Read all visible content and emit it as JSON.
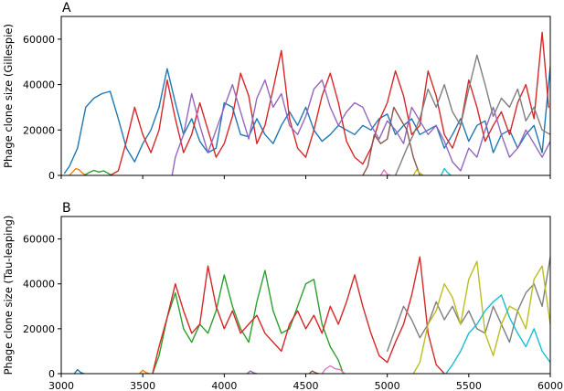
{
  "chart_data": [
    {
      "type": "line",
      "panel_label": "A",
      "xlabel": "",
      "ylabel": "Phage clone size (Gillespie)",
      "xlim": [
        3000,
        6000
      ],
      "ylim": [
        0,
        70000
      ],
      "xticks": [
        3000,
        3500,
        4000,
        4500,
        5000,
        5500,
        6000
      ],
      "yticks": [
        0,
        20000,
        40000,
        60000
      ],
      "show_xticklabels": false,
      "grid": false,
      "series": [
        {
          "color": "#1f77b4",
          "x": [
            3020,
            3050,
            3100,
            3150,
            3200,
            3250,
            3300,
            3350,
            3400,
            3450,
            3500,
            3550,
            3600,
            3650,
            3700,
            3750,
            3800,
            3850,
            3900,
            3950,
            4000,
            4050,
            4100,
            4150,
            4200,
            4250,
            4300,
            4350,
            4400,
            4450,
            4500,
            4550,
            4600,
            4650,
            4700,
            4750,
            4800,
            4850,
            4900,
            4950,
            5000,
            5050,
            5100,
            5150,
            5200,
            5250,
            5300,
            5350,
            5400,
            5450,
            5500,
            5550,
            5600,
            5650,
            5700,
            5750,
            5800,
            5850,
            5900,
            5950,
            6000
          ],
          "y": [
            1000,
            4000,
            12000,
            30000,
            34000,
            36000,
            37000,
            25000,
            12000,
            6000,
            14000,
            20000,
            30000,
            47000,
            32000,
            18000,
            25000,
            15000,
            10000,
            12000,
            32000,
            30000,
            18000,
            17000,
            25000,
            18000,
            14000,
            22000,
            28000,
            22000,
            30000,
            20000,
            15000,
            18000,
            22000,
            20000,
            18000,
            22000,
            20000,
            25000,
            27000,
            18000,
            22000,
            25000,
            18000,
            20000,
            22000,
            12000,
            18000,
            25000,
            15000,
            22000,
            24000,
            10000,
            18000,
            20000,
            12000,
            18000,
            22000,
            10000,
            48000
          ]
        },
        {
          "color": "#ff7f0e",
          "x": [
            3050,
            3070,
            3090,
            3110,
            3130,
            3150
          ],
          "y": [
            0,
            1500,
            3000,
            2500,
            1000,
            0
          ]
        },
        {
          "color": "#2ca02c",
          "x": [
            3140,
            3170,
            3200,
            3230,
            3260,
            3290,
            3310
          ],
          "y": [
            0,
            1200,
            2200,
            1500,
            2000,
            800,
            0
          ]
        },
        {
          "color": "#d62728",
          "x": [
            3300,
            3350,
            3400,
            3450,
            3500,
            3550,
            3600,
            3650,
            3700,
            3750,
            3800,
            3850,
            3900,
            3950,
            4000,
            4050,
            4100,
            4150,
            4200,
            4250,
            4300,
            4350,
            4400,
            4450,
            4500,
            4550,
            4600,
            4650,
            4700,
            4750,
            4800,
            4850,
            4900,
            4950,
            5000,
            5050,
            5100,
            5150,
            5200,
            5250,
            5300,
            5350,
            5400,
            5450,
            5500,
            5550,
            5600,
            5650,
            5700,
            5750,
            5800,
            5850,
            5900,
            5950,
            5990
          ],
          "y": [
            0,
            2000,
            15000,
            30000,
            18000,
            10000,
            20000,
            42000,
            25000,
            10000,
            18000,
            32000,
            20000,
            8000,
            14000,
            26000,
            45000,
            35000,
            14000,
            22000,
            38000,
            55000,
            25000,
            12000,
            8000,
            20000,
            35000,
            45000,
            32000,
            15000,
            8000,
            5000,
            12000,
            24000,
            32000,
            46000,
            35000,
            18000,
            22000,
            46000,
            35000,
            18000,
            12000,
            22000,
            42000,
            30000,
            15000,
            22000,
            28000,
            18000,
            32000,
            40000,
            25000,
            63000,
            30000
          ]
        },
        {
          "color": "#9467bd",
          "x": [
            3680,
            3700,
            3750,
            3800,
            3850,
            3900,
            3950,
            4000,
            4050,
            4100,
            4150,
            4200,
            4250,
            4300,
            4350,
            4400,
            4450,
            4500,
            4550,
            4600,
            4650,
            4700,
            4750,
            4800,
            4850,
            4900,
            4950,
            5000,
            5050,
            5100,
            5150,
            5200,
            5250,
            5300,
            5350,
            5400,
            5450,
            5500,
            5550,
            5600,
            5650,
            5700,
            5750,
            5800,
            5850,
            5900,
            5950,
            6000
          ],
          "y": [
            0,
            8000,
            18000,
            36000,
            22000,
            10000,
            20000,
            30000,
            40000,
            28000,
            16000,
            34000,
            42000,
            30000,
            36000,
            22000,
            18000,
            26000,
            38000,
            42000,
            30000,
            22000,
            28000,
            32000,
            30000,
            22000,
            16000,
            24000,
            20000,
            14000,
            30000,
            24000,
            18000,
            22000,
            15000,
            6000,
            2000,
            12000,
            8000,
            20000,
            30000,
            18000,
            8000,
            12000,
            20000,
            14000,
            8000,
            15000
          ]
        },
        {
          "color": "#8c564b",
          "x": [
            4850,
            4880,
            4920,
            4960,
            5000,
            5040,
            5080,
            5120,
            5160,
            5200
          ],
          "y": [
            0,
            4000,
            18000,
            14000,
            16000,
            30000,
            25000,
            20000,
            8000,
            0
          ]
        },
        {
          "color": "#e377c2",
          "x": [
            4960,
            4980,
            5000,
            5020
          ],
          "y": [
            0,
            2500,
            500,
            0
          ]
        },
        {
          "color": "#7f7f7f",
          "x": [
            5050,
            5080,
            5120,
            5160,
            5200,
            5250,
            5300,
            5350,
            5400,
            5450,
            5500,
            5550,
            5600,
            5650,
            5700,
            5750,
            5800,
            5850,
            5900,
            5950,
            6000
          ],
          "y": [
            0,
            5000,
            12000,
            18000,
            25000,
            38000,
            30000,
            40000,
            28000,
            22000,
            38000,
            53000,
            40000,
            26000,
            34000,
            30000,
            38000,
            24000,
            30000,
            20000,
            18000
          ]
        },
        {
          "color": "#bcbd22",
          "x": [
            5160,
            5180,
            5200,
            5220
          ],
          "y": [
            0,
            2500,
            1000,
            0
          ]
        },
        {
          "color": "#17becf",
          "x": [
            5330,
            5350,
            5370,
            5390
          ],
          "y": [
            0,
            3000,
            1200,
            0
          ]
        }
      ]
    },
    {
      "type": "line",
      "panel_label": "B",
      "xlabel": "",
      "ylabel": "Phage clone size (Tau-leaping)",
      "xlim": [
        3000,
        6000
      ],
      "ylim": [
        0,
        70000
      ],
      "xticks": [
        3000,
        3500,
        4000,
        4500,
        5000,
        5500,
        6000
      ],
      "yticks": [
        0,
        20000,
        40000,
        60000
      ],
      "show_xticklabels": true,
      "grid": false,
      "series": [
        {
          "color": "#1f77b4",
          "x": [
            3080,
            3100,
            3120,
            3140
          ],
          "y": [
            0,
            1800,
            500,
            0
          ]
        },
        {
          "color": "#ff7f0e",
          "x": [
            3480,
            3500,
            3520,
            3540
          ],
          "y": [
            0,
            1500,
            500,
            0
          ]
        },
        {
          "color": "#2ca02c",
          "x": [
            3560,
            3600,
            3650,
            3700,
            3750,
            3800,
            3850,
            3900,
            3950,
            4000,
            4050,
            4100,
            4150,
            4200,
            4250,
            4300,
            4350,
            4400,
            4450,
            4500,
            4550,
            4600,
            4650,
            4700,
            4730
          ],
          "y": [
            0,
            8000,
            25000,
            36000,
            20000,
            14000,
            22000,
            18000,
            28000,
            44000,
            30000,
            20000,
            14000,
            32000,
            46000,
            28000,
            18000,
            20000,
            30000,
            40000,
            42000,
            22000,
            12000,
            6000,
            0
          ]
        },
        {
          "color": "#d62728",
          "x": [
            3560,
            3600,
            3650,
            3700,
            3750,
            3800,
            3850,
            3900,
            3950,
            4000,
            4050,
            4100,
            4150,
            4200,
            4250,
            4300,
            4350,
            4400,
            4450,
            4500,
            4550,
            4600,
            4650,
            4700,
            4750,
            4800,
            4850,
            4900,
            4950,
            5000,
            5050,
            5100,
            5150,
            5200,
            5250,
            5300,
            5350
          ],
          "y": [
            0,
            12000,
            25000,
            40000,
            28000,
            18000,
            22000,
            48000,
            30000,
            20000,
            28000,
            18000,
            22000,
            26000,
            18000,
            14000,
            10000,
            22000,
            28000,
            20000,
            26000,
            18000,
            30000,
            22000,
            32000,
            44000,
            30000,
            18000,
            8000,
            5000,
            14000,
            22000,
            35000,
            52000,
            18000,
            4000,
            0
          ]
        },
        {
          "color": "#9467bd",
          "x": [
            4140,
            4160,
            4180,
            4200
          ],
          "y": [
            0,
            1200,
            400,
            0
          ]
        },
        {
          "color": "#8c564b",
          "x": [
            4520,
            4540,
            4560,
            4580
          ],
          "y": [
            0,
            1200,
            400,
            0
          ]
        },
        {
          "color": "#e377c2",
          "x": [
            4600,
            4620,
            4650,
            4680,
            4710,
            4740
          ],
          "y": [
            0,
            2000,
            3500,
            2200,
            1800,
            0
          ]
        },
        {
          "color": "#7f7f7f",
          "x": [
            5000,
            5050,
            5100,
            5150,
            5200,
            5250,
            5300,
            5350,
            5400,
            5450,
            5500,
            5550,
            5600,
            5650,
            5700,
            5750,
            5800,
            5850,
            5900,
            5950,
            6000
          ],
          "y": [
            10000,
            20000,
            30000,
            24000,
            16000,
            22000,
            32000,
            24000,
            30000,
            22000,
            28000,
            20000,
            18000,
            30000,
            22000,
            14000,
            28000,
            36000,
            40000,
            30000,
            52000
          ]
        },
        {
          "color": "#bcbd22",
          "x": [
            5160,
            5200,
            5250,
            5300,
            5350,
            5400,
            5450,
            5500,
            5550,
            5600,
            5650,
            5700,
            5750,
            5800,
            5850,
            5900,
            5950,
            6000
          ],
          "y": [
            0,
            5000,
            22000,
            28000,
            40000,
            34000,
            22000,
            42000,
            50000,
            18000,
            8000,
            22000,
            30000,
            28000,
            20000,
            42000,
            48000,
            22000
          ]
        },
        {
          "color": "#17becf",
          "x": [
            5360,
            5400,
            5450,
            5500,
            5550,
            5600,
            5650,
            5700,
            5750,
            5800,
            5850,
            5900,
            5950,
            6000
          ],
          "y": [
            0,
            4000,
            10000,
            18000,
            22000,
            28000,
            32000,
            35000,
            25000,
            18000,
            12000,
            20000,
            10000,
            5000
          ]
        }
      ]
    }
  ]
}
